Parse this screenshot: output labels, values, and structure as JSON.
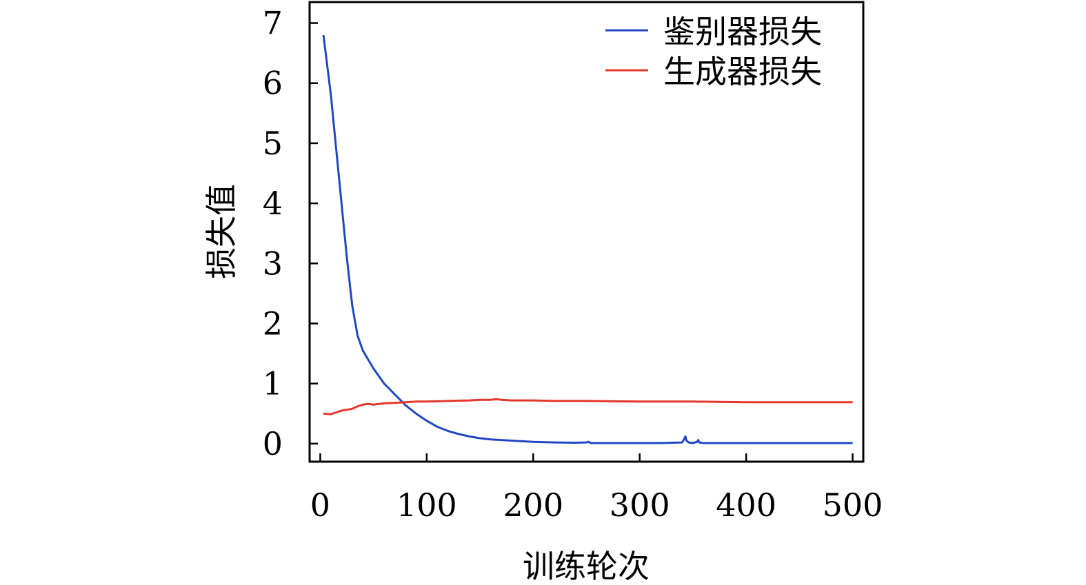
{
  "chart_data": {
    "type": "line",
    "xlabel": "训练轮次",
    "ylabel": "损失值",
    "xlim": [
      -10,
      510
    ],
    "ylim": [
      -0.3,
      7.35
    ],
    "xticks": [
      0,
      100,
      200,
      300,
      400,
      500
    ],
    "yticks": [
      0,
      1,
      2,
      3,
      4,
      5,
      6,
      7
    ],
    "xtick_labels": [
      "0",
      "100",
      "200",
      "300",
      "400",
      "500"
    ],
    "ytick_labels": [
      "0",
      "1",
      "2",
      "3",
      "4",
      "5",
      "6",
      "7"
    ],
    "grid": false,
    "legend": "top-right",
    "series": [
      {
        "name": "鉴别器损失",
        "color": "#1f47c4",
        "x": [
          3,
          10,
          15,
          20,
          25,
          30,
          35,
          40,
          45,
          50,
          60,
          70,
          80,
          90,
          100,
          110,
          120,
          130,
          140,
          150,
          160,
          170,
          180,
          190,
          200,
          220,
          240,
          250,
          252,
          254,
          260,
          280,
          300,
          320,
          340,
          343,
          344,
          346,
          350,
          354,
          355,
          356,
          360,
          380,
          400,
          420,
          440,
          460,
          480,
          500
        ],
        "y": [
          6.8,
          5.8,
          4.9,
          4.0,
          3.1,
          2.3,
          1.8,
          1.55,
          1.4,
          1.25,
          1.0,
          0.82,
          0.64,
          0.5,
          0.38,
          0.28,
          0.21,
          0.16,
          0.12,
          0.09,
          0.07,
          0.06,
          0.05,
          0.04,
          0.03,
          0.02,
          0.015,
          0.02,
          0.03,
          0.01,
          0.01,
          0.01,
          0.01,
          0.01,
          0.02,
          0.12,
          0.05,
          0.02,
          0.01,
          0.03,
          0.06,
          0.02,
          0.01,
          0.01,
          0.01,
          0.01,
          0.01,
          0.01,
          0.01,
          0.01
        ]
      },
      {
        "name": "生成器损失",
        "color": "#e3372a",
        "x": [
          3,
          10,
          15,
          20,
          30,
          35,
          40,
          45,
          50,
          60,
          70,
          80,
          90,
          100,
          120,
          140,
          150,
          160,
          165,
          170,
          180,
          200,
          220,
          250,
          300,
          350,
          400,
          450,
          500
        ],
        "y": [
          0.5,
          0.49,
          0.52,
          0.55,
          0.58,
          0.62,
          0.65,
          0.66,
          0.65,
          0.67,
          0.68,
          0.69,
          0.7,
          0.7,
          0.71,
          0.72,
          0.73,
          0.73,
          0.74,
          0.73,
          0.72,
          0.72,
          0.71,
          0.71,
          0.7,
          0.7,
          0.69,
          0.69,
          0.69
        ]
      }
    ]
  }
}
